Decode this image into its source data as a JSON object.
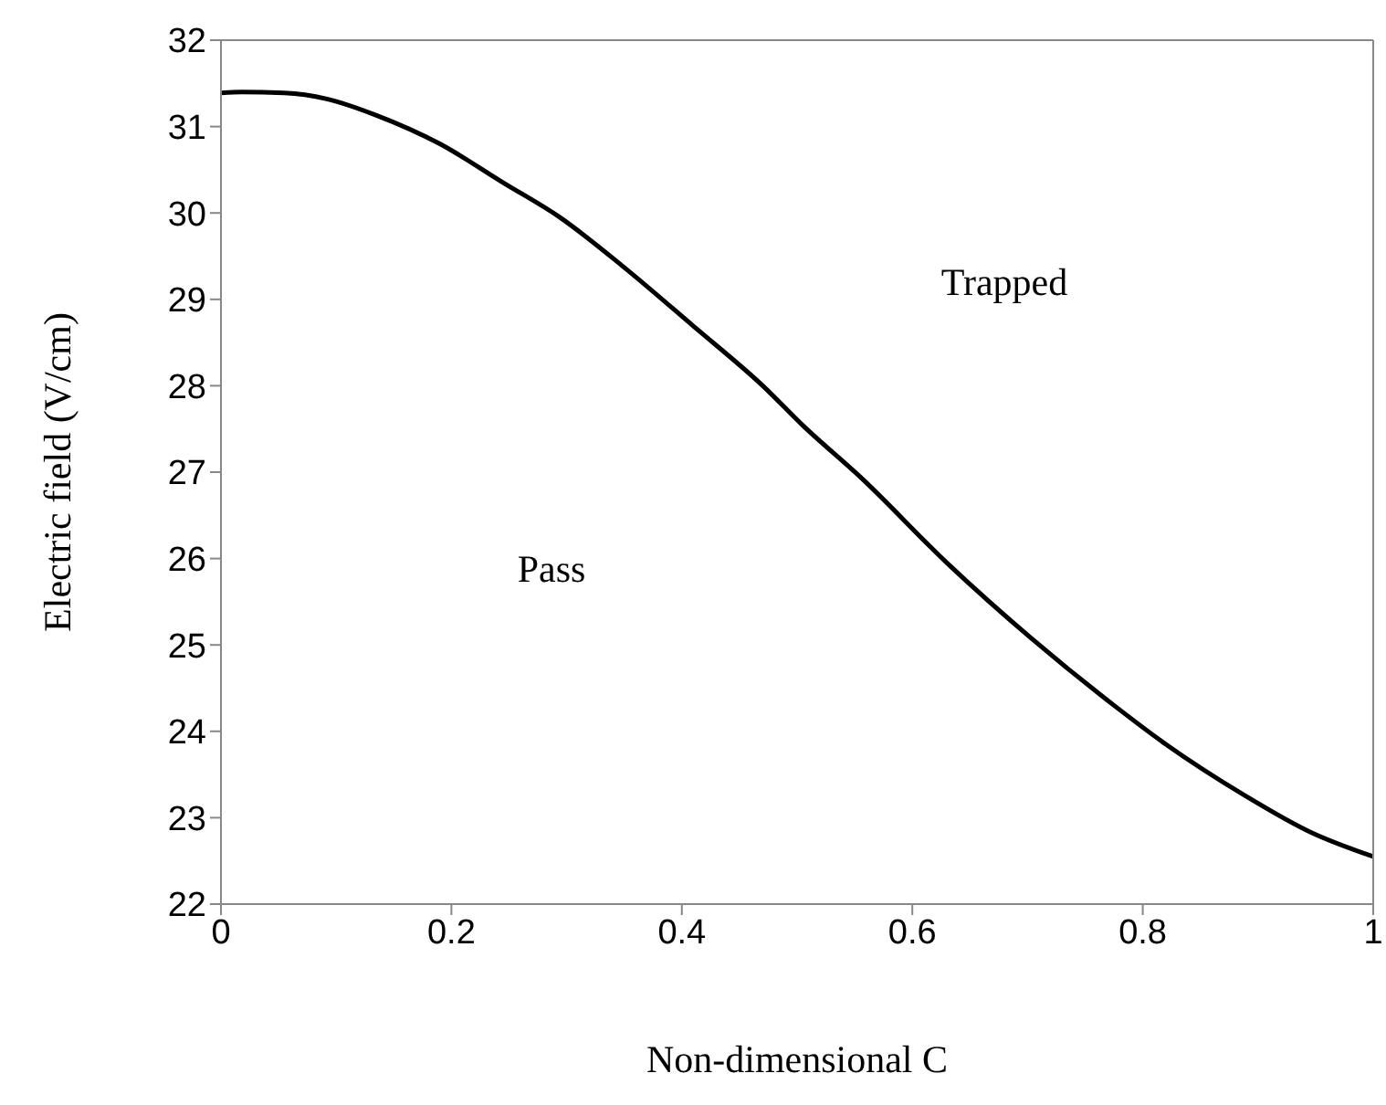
{
  "chart_data": {
    "type": "line",
    "xlabel": "Non-dimensional C",
    "ylabel": "Electric  field (V/cm)",
    "x": [
      0,
      0.018,
      0.055,
      0.092,
      0.135,
      0.19,
      0.245,
      0.294,
      0.349,
      0.41,
      0.471,
      0.505,
      0.556,
      0.63,
      0.703,
      0.776,
      0.82,
      0.887,
      0.946,
      1
    ],
    "series": [
      {
        "color": "#000000",
        "values": [
          31.39,
          31.4,
          31.39,
          31.32,
          31.13,
          30.8,
          30.35,
          29.95,
          29.38,
          28.69,
          27.99,
          27.54,
          26.93,
          25.95,
          25.08,
          24.29,
          23.85,
          23.27,
          22.83,
          22.55
        ]
      }
    ],
    "xlim": [
      0,
      1
    ],
    "xticks": [
      0,
      0.2,
      0.4,
      0.6,
      0.8,
      1
    ],
    "ylim": [
      22,
      32
    ],
    "yticks": [
      22,
      23,
      24,
      25,
      26,
      27,
      28,
      29,
      30,
      31,
      32
    ],
    "grid": false,
    "marker": "none",
    "line_style": "solid",
    "annotations": [
      "Trapped",
      "Pass"
    ]
  }
}
